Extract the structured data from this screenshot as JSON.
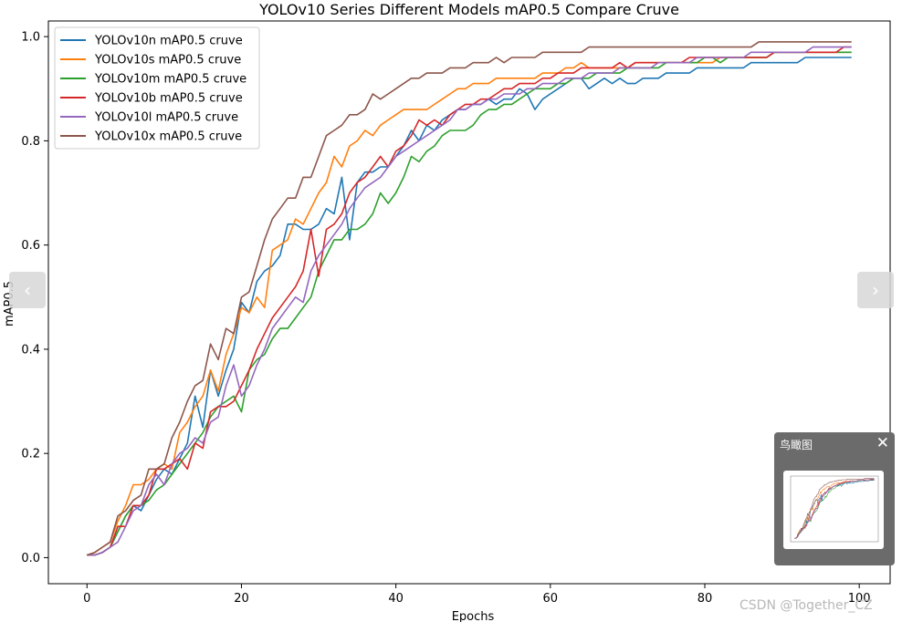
{
  "chart_data": {
    "type": "line",
    "title": "YOLOv10 Series Different Models mAP0.5 Compare Cruve",
    "xlabel": "Epochs",
    "ylabel": "mAP0.5",
    "xlim": [
      -5,
      104
    ],
    "ylim": [
      -0.05,
      1.03
    ],
    "xticks": [
      0,
      20,
      40,
      60,
      80,
      100
    ],
    "yticks": [
      0.0,
      0.2,
      0.4,
      0.6,
      0.8,
      1.0
    ],
    "grid": false,
    "legend_position": "upper-left",
    "x_start": 0,
    "series": [
      {
        "name": "YOLOv10n mAP0.5 cruve",
        "color": "#1f77b4",
        "values": [
          0.005,
          0.005,
          0.01,
          0.02,
          0.05,
          0.08,
          0.1,
          0.09,
          0.12,
          0.15,
          0.17,
          0.16,
          0.19,
          0.22,
          0.31,
          0.25,
          0.36,
          0.31,
          0.36,
          0.4,
          0.49,
          0.47,
          0.53,
          0.55,
          0.56,
          0.58,
          0.64,
          0.64,
          0.63,
          0.63,
          0.64,
          0.67,
          0.66,
          0.73,
          0.61,
          0.72,
          0.74,
          0.74,
          0.75,
          0.75,
          0.77,
          0.79,
          0.82,
          0.8,
          0.83,
          0.82,
          0.84,
          0.85,
          0.86,
          0.86,
          0.87,
          0.87,
          0.88,
          0.87,
          0.88,
          0.88,
          0.9,
          0.89,
          0.86,
          0.88,
          0.89,
          0.9,
          0.91,
          0.92,
          0.92,
          0.9,
          0.91,
          0.92,
          0.91,
          0.92,
          0.91,
          0.91,
          0.92,
          0.92,
          0.92,
          0.93,
          0.93,
          0.93,
          0.93,
          0.94,
          0.94,
          0.94,
          0.94,
          0.94,
          0.94,
          0.94,
          0.95,
          0.95,
          0.95,
          0.95,
          0.95,
          0.95,
          0.95,
          0.96,
          0.96,
          0.96,
          0.96,
          0.96,
          0.96,
          0.96
        ]
      },
      {
        "name": "YOLOv10s mAP0.5 cruve",
        "color": "#ff7f0e",
        "values": [
          0.005,
          0.01,
          0.02,
          0.03,
          0.07,
          0.1,
          0.14,
          0.14,
          0.15,
          0.17,
          0.18,
          0.17,
          0.24,
          0.26,
          0.29,
          0.31,
          0.36,
          0.32,
          0.39,
          0.43,
          0.48,
          0.47,
          0.5,
          0.48,
          0.59,
          0.6,
          0.61,
          0.65,
          0.64,
          0.67,
          0.7,
          0.72,
          0.77,
          0.75,
          0.79,
          0.8,
          0.82,
          0.81,
          0.83,
          0.84,
          0.85,
          0.86,
          0.86,
          0.86,
          0.86,
          0.87,
          0.88,
          0.89,
          0.9,
          0.9,
          0.91,
          0.91,
          0.91,
          0.92,
          0.92,
          0.92,
          0.92,
          0.92,
          0.92,
          0.93,
          0.93,
          0.93,
          0.94,
          0.94,
          0.95,
          0.94,
          0.94,
          0.94,
          0.94,
          0.94,
          0.94,
          0.95,
          0.95,
          0.95,
          0.95,
          0.95,
          0.95,
          0.95,
          0.95,
          0.95,
          0.95,
          0.95,
          0.96,
          0.96,
          0.96,
          0.96,
          0.96,
          0.96,
          0.96,
          0.97,
          0.97,
          0.97,
          0.97,
          0.97,
          0.97,
          0.97,
          0.97,
          0.97,
          0.97,
          0.97
        ]
      },
      {
        "name": "YOLOv10m mAP0.5 cruve",
        "color": "#2ca02c",
        "values": [
          0.005,
          0.005,
          0.01,
          0.02,
          0.05,
          0.08,
          0.1,
          0.1,
          0.11,
          0.13,
          0.14,
          0.16,
          0.18,
          0.2,
          0.22,
          0.24,
          0.27,
          0.29,
          0.3,
          0.31,
          0.28,
          0.36,
          0.38,
          0.39,
          0.42,
          0.44,
          0.44,
          0.46,
          0.48,
          0.5,
          0.55,
          0.58,
          0.61,
          0.61,
          0.63,
          0.63,
          0.64,
          0.66,
          0.7,
          0.68,
          0.7,
          0.73,
          0.77,
          0.76,
          0.78,
          0.79,
          0.81,
          0.82,
          0.82,
          0.82,
          0.83,
          0.85,
          0.86,
          0.86,
          0.87,
          0.87,
          0.88,
          0.89,
          0.9,
          0.9,
          0.9,
          0.91,
          0.91,
          0.92,
          0.92,
          0.92,
          0.93,
          0.93,
          0.93,
          0.93,
          0.94,
          0.94,
          0.94,
          0.94,
          0.94,
          0.95,
          0.95,
          0.95,
          0.95,
          0.95,
          0.96,
          0.96,
          0.95,
          0.96,
          0.96,
          0.96,
          0.96,
          0.96,
          0.96,
          0.97,
          0.97,
          0.97,
          0.97,
          0.97,
          0.97,
          0.97,
          0.97,
          0.97,
          0.97,
          0.97
        ]
      },
      {
        "name": "YOLOv10b mAP0.5 cruve",
        "color": "#d62728",
        "values": [
          0.005,
          0.005,
          0.01,
          0.02,
          0.06,
          0.06,
          0.1,
          0.1,
          0.12,
          0.17,
          0.17,
          0.18,
          0.19,
          0.17,
          0.22,
          0.21,
          0.28,
          0.29,
          0.29,
          0.3,
          0.33,
          0.36,
          0.4,
          0.43,
          0.46,
          0.48,
          0.5,
          0.52,
          0.55,
          0.63,
          0.54,
          0.63,
          0.64,
          0.66,
          0.7,
          0.72,
          0.73,
          0.75,
          0.77,
          0.75,
          0.78,
          0.79,
          0.81,
          0.84,
          0.83,
          0.84,
          0.83,
          0.85,
          0.86,
          0.87,
          0.87,
          0.88,
          0.88,
          0.89,
          0.9,
          0.9,
          0.91,
          0.91,
          0.91,
          0.92,
          0.92,
          0.93,
          0.93,
          0.93,
          0.94,
          0.94,
          0.94,
          0.94,
          0.94,
          0.95,
          0.94,
          0.95,
          0.95,
          0.95,
          0.95,
          0.95,
          0.95,
          0.95,
          0.96,
          0.96,
          0.96,
          0.96,
          0.96,
          0.96,
          0.96,
          0.96,
          0.96,
          0.96,
          0.96,
          0.97,
          0.97,
          0.97,
          0.97,
          0.97,
          0.97,
          0.97,
          0.97,
          0.97,
          0.98,
          0.98
        ]
      },
      {
        "name": "YOLOv10l mAP0.5 cruve",
        "color": "#9467bd",
        "values": [
          0.005,
          0.005,
          0.01,
          0.02,
          0.03,
          0.06,
          0.09,
          0.1,
          0.14,
          0.16,
          0.14,
          0.18,
          0.2,
          0.21,
          0.23,
          0.22,
          0.26,
          0.27,
          0.33,
          0.37,
          0.31,
          0.33,
          0.37,
          0.4,
          0.44,
          0.46,
          0.48,
          0.5,
          0.49,
          0.55,
          0.58,
          0.6,
          0.62,
          0.64,
          0.67,
          0.69,
          0.71,
          0.72,
          0.73,
          0.75,
          0.77,
          0.78,
          0.79,
          0.8,
          0.81,
          0.82,
          0.83,
          0.84,
          0.86,
          0.86,
          0.87,
          0.87,
          0.88,
          0.88,
          0.89,
          0.89,
          0.89,
          0.9,
          0.9,
          0.91,
          0.91,
          0.91,
          0.92,
          0.92,
          0.92,
          0.93,
          0.93,
          0.93,
          0.93,
          0.94,
          0.94,
          0.94,
          0.94,
          0.94,
          0.95,
          0.95,
          0.95,
          0.95,
          0.95,
          0.96,
          0.96,
          0.96,
          0.96,
          0.96,
          0.96,
          0.96,
          0.97,
          0.97,
          0.97,
          0.97,
          0.97,
          0.97,
          0.97,
          0.97,
          0.98,
          0.98,
          0.98,
          0.98,
          0.98,
          0.98
        ]
      },
      {
        "name": "YOLOv10x mAP0.5 cruve",
        "color": "#8c564b",
        "values": [
          0.005,
          0.01,
          0.02,
          0.03,
          0.08,
          0.09,
          0.11,
          0.12,
          0.17,
          0.17,
          0.18,
          0.23,
          0.26,
          0.3,
          0.33,
          0.34,
          0.41,
          0.38,
          0.44,
          0.43,
          0.5,
          0.51,
          0.56,
          0.61,
          0.65,
          0.67,
          0.69,
          0.69,
          0.73,
          0.73,
          0.77,
          0.81,
          0.82,
          0.83,
          0.85,
          0.85,
          0.86,
          0.89,
          0.88,
          0.89,
          0.9,
          0.91,
          0.92,
          0.92,
          0.93,
          0.93,
          0.93,
          0.94,
          0.94,
          0.94,
          0.95,
          0.95,
          0.95,
          0.96,
          0.95,
          0.96,
          0.96,
          0.96,
          0.96,
          0.97,
          0.97,
          0.97,
          0.97,
          0.97,
          0.97,
          0.98,
          0.98,
          0.98,
          0.98,
          0.98,
          0.98,
          0.98,
          0.98,
          0.98,
          0.98,
          0.98,
          0.98,
          0.98,
          0.98,
          0.98,
          0.98,
          0.98,
          0.98,
          0.98,
          0.98,
          0.98,
          0.98,
          0.99,
          0.99,
          0.99,
          0.99,
          0.99,
          0.99,
          0.99,
          0.99,
          0.99,
          0.99,
          0.99,
          0.99,
          0.99
        ]
      }
    ]
  },
  "overlay": {
    "prev_label": "‹",
    "next_label": "›",
    "watermark": "CSDN @Together_CZ",
    "birdseye_title": "鸟瞰图",
    "birdseye_close": "✕"
  }
}
